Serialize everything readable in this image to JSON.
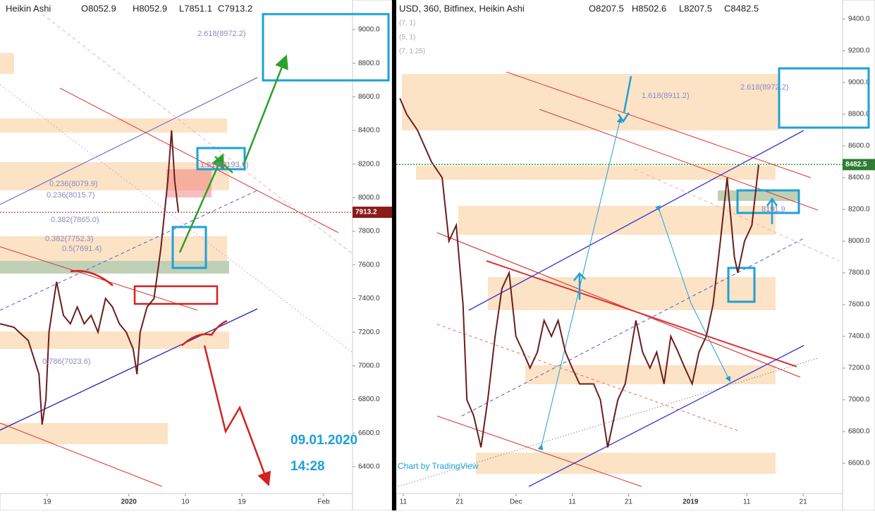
{
  "chart_data": [
    {
      "type": "line",
      "title": "Heikin Ashi",
      "ohlc": [
        "O8052.9",
        "H8052.9",
        "L7851.1",
        "C7913.2"
      ],
      "color": "#6b1d1d",
      "x": [
        -7.5,
        -5.3,
        -3,
        -1.3,
        -0.8,
        -0.2,
        0.3,
        1.5,
        2.6,
        3.7,
        4.8,
        5.9,
        7,
        8.1,
        9.3,
        10.4,
        11.5,
        12.6,
        13.7,
        14.3,
        14.8,
        15.9,
        17,
        18.1,
        19.2,
        19.8,
        20.3,
        20.9
      ],
      "values": [
        7250,
        7230,
        7150,
        6950,
        6650,
        6800,
        7200,
        7500,
        7300,
        7250,
        7350,
        7250,
        7300,
        7200,
        7400,
        7350,
        7250,
        7200,
        7100,
        6950,
        7200,
        7350,
        7400,
        7700,
        8100,
        8400,
        8100,
        7913.2
      ],
      "xlim": [
        -7.5,
        48.6
      ],
      "xticks": [
        {
          "value": 0,
          "label": "19"
        },
        {
          "value": 13,
          "label": "2020"
        },
        {
          "value": 22,
          "label": "10"
        },
        {
          "value": 31,
          "label": "19"
        },
        {
          "value": 44,
          "label": "Feb"
        }
      ],
      "ylim": [
        6240,
        9176
      ],
      "yticks": [
        {
          "value": 6400,
          "label": "6400.0"
        },
        {
          "value": 6600,
          "label": "6600.0"
        },
        {
          "value": 6800,
          "label": "6800.0"
        },
        {
          "value": 7000,
          "label": "7000.0"
        },
        {
          "value": 7200,
          "label": "7200.0"
        },
        {
          "value": 7400,
          "label": "7400.0"
        },
        {
          "value": 7600,
          "label": "7600.0"
        },
        {
          "value": 7800,
          "label": "7800.0"
        },
        {
          "value": 8000,
          "label": "8000.0"
        },
        {
          "value": 8200,
          "label": "8200.0"
        },
        {
          "value": 8400,
          "label": "8400.0"
        },
        {
          "value": 8600,
          "label": "8600.0"
        },
        {
          "value": 8800,
          "label": "8800.0"
        },
        {
          "value": 9000,
          "label": "9000.0"
        }
      ],
      "last_price": 7913.2,
      "annotations": [
        "2.618(8972.2)",
        "0.236(8079.9)",
        "0.236(8015.7)",
        "0.382(7865.0)",
        "0.382(7752.3)",
        "0.5(7691.4)",
        "0.786(7023.6)",
        "1.618(8193.9)"
      ],
      "notes": [
        "09.01.2020",
        "14:28"
      ]
    },
    {
      "type": "line",
      "title": "USD, 360, Bitfinex, Heikin Ashi",
      "ohlc": [
        "O8207.5",
        "H8502.6",
        "L8207.5",
        "C8482.5"
      ],
      "color": "#6b1d1d",
      "indicators": [
        "(7, 1)",
        "(5, 1)",
        "(7, 1.25)"
      ],
      "x": [
        -0.6,
        0.6,
        2.5,
        5,
        6.9,
        8.1,
        9.4,
        10.6,
        11.3,
        12.5,
        13.8,
        15,
        16.3,
        17.5,
        18.8,
        20,
        21.3,
        22.5,
        23.8,
        25,
        26.3,
        27.5,
        28.8,
        30,
        31.3,
        32.5,
        33.8,
        35,
        36.3,
        36.9,
        38.1,
        39.4,
        41.3,
        42.5,
        43.8,
        45,
        46.3,
        47.5,
        48.8,
        50,
        51.3,
        52.5,
        53.8,
        55,
        56.3,
        57.5,
        58.8,
        59.4,
        60.6,
        61.9,
        63.1
      ],
      "values": [
        8900,
        8800,
        8700,
        8500,
        8400,
        8000,
        8100,
        7600,
        7000,
        6900,
        6700,
        7000,
        7400,
        7700,
        7800,
        7400,
        7300,
        7200,
        7300,
        7500,
        7400,
        7500,
        7300,
        7200,
        7100,
        7100,
        7100,
        7000,
        6700,
        6800,
        7000,
        7100,
        7500,
        7300,
        7200,
        7300,
        7100,
        7400,
        7300,
        7200,
        7100,
        7300,
        7400,
        7600,
        8000,
        8400,
        7900,
        7800,
        8000,
        8100,
        8482.5
      ],
      "xlim": [
        -1.25,
        78
      ],
      "xticks": [
        {
          "value": 0,
          "label": "11"
        },
        {
          "value": 10,
          "label": "21"
        },
        {
          "value": 20,
          "label": "Dec"
        },
        {
          "value": 30,
          "label": "11"
        },
        {
          "value": 40,
          "label": "21"
        },
        {
          "value": 51,
          "label": "2019"
        },
        {
          "value": 61,
          "label": "11"
        },
        {
          "value": 71,
          "label": "21"
        }
      ],
      "ylim": [
        6409,
        9520
      ],
      "yticks": [
        {
          "value": 6600,
          "label": "6600.0"
        },
        {
          "value": 6800,
          "label": "6800.0"
        },
        {
          "value": 7000,
          "label": "7000.0"
        },
        {
          "value": 7200,
          "label": "7200.0"
        },
        {
          "value": 7400,
          "label": "7400.0"
        },
        {
          "value": 7600,
          "label": "7600.0"
        },
        {
          "value": 7800,
          "label": "7800.0"
        },
        {
          "value": 8000,
          "label": "8000.0"
        },
        {
          "value": 8200,
          "label": "8200.0"
        },
        {
          "value": 8400,
          "label": "8400.0"
        },
        {
          "value": 8600,
          "label": "8600.0"
        },
        {
          "value": 8800,
          "label": "8800.0"
        },
        {
          "value": 9000,
          "label": "9000.0"
        },
        {
          "value": 9200,
          "label": "9200.0"
        },
        {
          "value": 9400,
          "label": "9400.0"
        }
      ],
      "last_price": 8482.5,
      "annotations": [
        "1.618(8911.2)",
        "2.618(8972.2)",
        "8191.9"
      ],
      "notes": [
        "Chart by TradingView"
      ]
    }
  ]
}
